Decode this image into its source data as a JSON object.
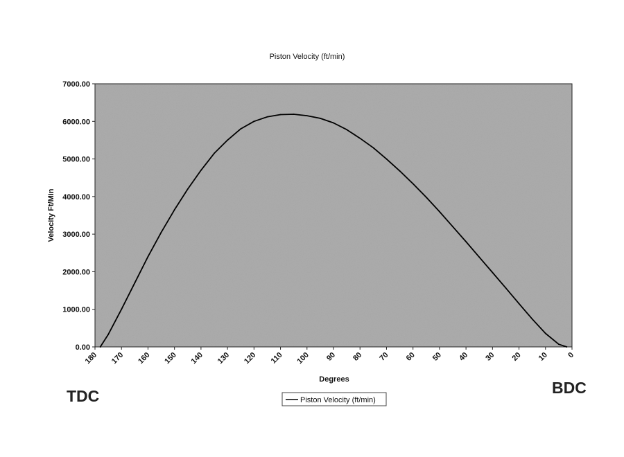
{
  "chart_data": {
    "type": "line",
    "title": "Piston Velocity (ft/min)",
    "xlabel": "Degrees",
    "ylabel": "Velocity Ft/Min",
    "xlim": [
      180,
      0
    ],
    "ylim": [
      0,
      7000
    ],
    "x_ticks": [
      "180",
      "170",
      "160",
      "150",
      "140",
      "130",
      "120",
      "110",
      "100",
      "90",
      "80",
      "70",
      "60",
      "50",
      "40",
      "30",
      "20",
      "10",
      "0"
    ],
    "y_ticks": [
      "0.00",
      "1000.00",
      "2000.00",
      "3000.00",
      "4000.00",
      "5000.00",
      "6000.00",
      "7000.00"
    ],
    "grid": false,
    "legend_position": "bottom",
    "series": [
      {
        "name": "Piston Velocity (ft/min)",
        "color": "#000000",
        "x": [
          178,
          175,
          170,
          165,
          160,
          155,
          150,
          145,
          140,
          135,
          130,
          125,
          120,
          115,
          110,
          105,
          100,
          95,
          90,
          85,
          80,
          75,
          70,
          65,
          60,
          55,
          50,
          45,
          40,
          35,
          30,
          25,
          20,
          15,
          10,
          5,
          2
        ],
        "y": [
          0,
          330,
          1000,
          1700,
          2400,
          3050,
          3650,
          4200,
          4700,
          5150,
          5500,
          5800,
          6000,
          6120,
          6180,
          6190,
          6150,
          6080,
          5960,
          5780,
          5550,
          5300,
          5000,
          4680,
          4340,
          3980,
          3600,
          3200,
          2800,
          2390,
          1980,
          1570,
          1150,
          740,
          360,
          70,
          0
        ]
      }
    ]
  },
  "labels": {
    "left_corner": "TDC",
    "right_corner": "BDC"
  },
  "colors": {
    "plot_background": "#a6a6a6",
    "line": "#000000"
  }
}
